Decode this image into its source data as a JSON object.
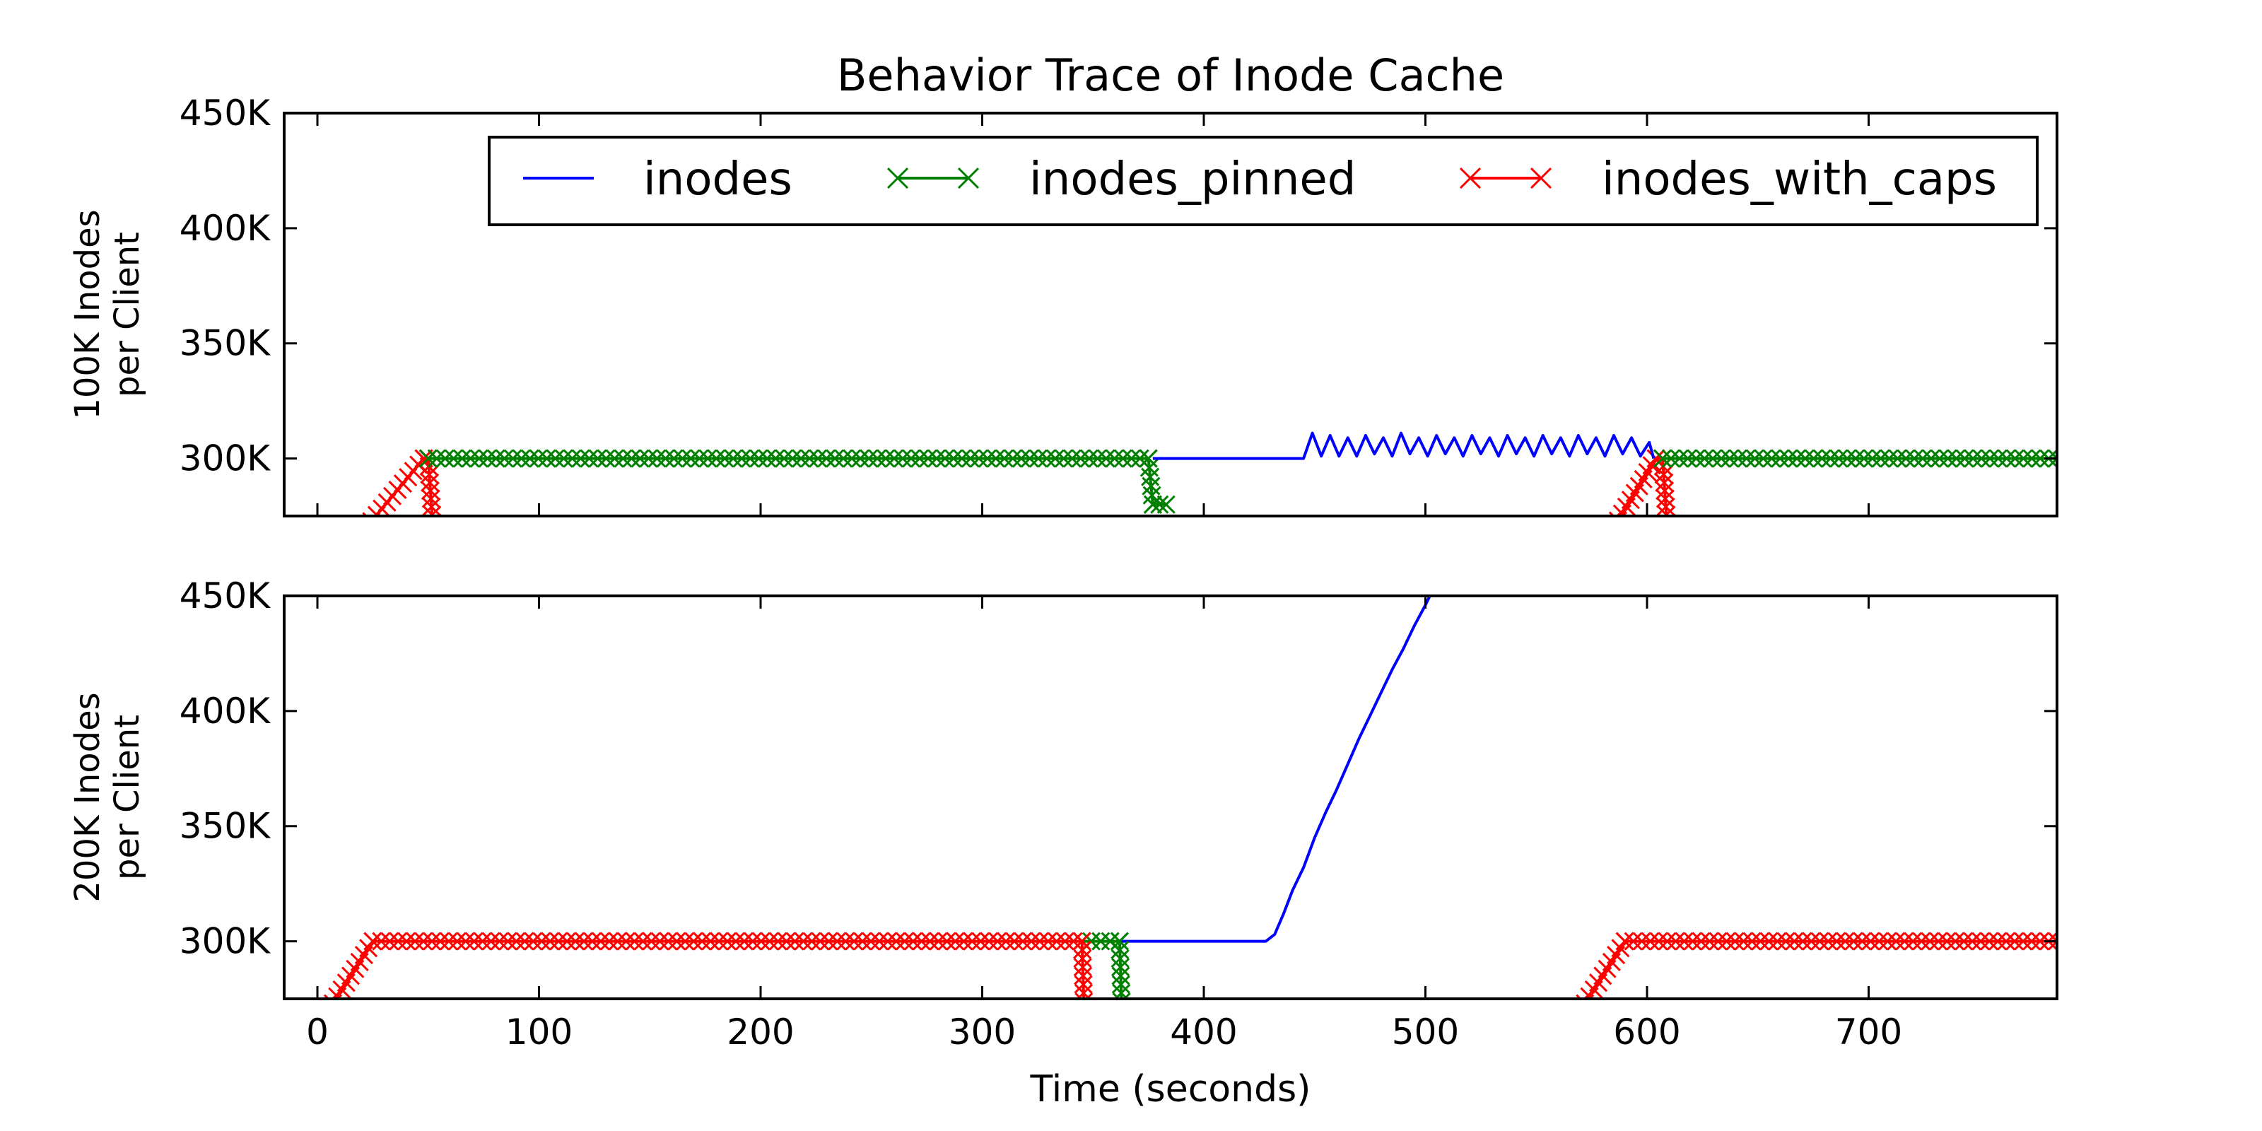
{
  "chart_data": {
    "type": "line",
    "title": "Behavior Trace of Inode Cache",
    "xlabel": "Time (seconds)",
    "xlim": [
      -15,
      785
    ],
    "xticks": [
      0,
      100,
      200,
      300,
      400,
      500,
      600,
      700
    ],
    "ylim": [
      275000,
      450000
    ],
    "yticks": [
      300000,
      350000,
      400000,
      450000
    ],
    "ytick_labels": [
      "300K",
      "350K",
      "400K",
      "450K"
    ],
    "legend": {
      "placement": "top-right",
      "entries": [
        {
          "name": "inodes",
          "color": "#0000ff",
          "marker": "none"
        },
        {
          "name": "inodes_pinned",
          "color": "#008000",
          "marker": "x"
        },
        {
          "name": "inodes_with_caps",
          "color": "#ff0000",
          "marker": "x"
        }
      ]
    },
    "panels": [
      {
        "ylabel_line1": "100K Inodes",
        "ylabel_line2": "per Client",
        "series": [
          {
            "name": "inodes_with_caps",
            "color": "#ff0000",
            "marker": "x",
            "segments": [
              [
                [
                  22,
                  270000
                ],
                [
                  48,
                  300000
                ],
                [
                  50,
                  300000
                ],
                [
                  52,
                  272000
                ]
              ],
              [
                [
                  585,
                  270000
                ],
                [
                  604,
                  300000
                ],
                [
                  607,
                  300000
                ],
                [
                  609,
                  272000
                ]
              ]
            ]
          },
          {
            "name": "inodes_pinned",
            "color": "#008000",
            "marker": "x",
            "segments": [
              [
                [
                  50,
                  300000
                ],
                [
                  375,
                  300000
                ],
                [
                  377,
                  280000
                ],
                [
                  383,
                  280000
                ]
              ],
              [
                [
                  607,
                  300000
                ],
                [
                  785,
                  300000
                ]
              ]
            ]
          },
          {
            "name": "inodes",
            "color": "#0000ff",
            "marker": "none",
            "segments": [
              [
                [
                  377,
                  300000
                ],
                [
                  445,
                  300000
                ],
                [
                  449,
                  311000
                ],
                [
                  453,
                  301000
                ],
                [
                  457,
                  310000
                ],
                [
                  461,
                  301000
                ],
                [
                  465,
                  309000
                ],
                [
                  469,
                  301000
                ],
                [
                  473,
                  310000
                ],
                [
                  477,
                  302000
                ],
                [
                  481,
                  309000
                ],
                [
                  485,
                  301000
                ],
                [
                  489,
                  311000
                ],
                [
                  493,
                  302000
                ],
                [
                  497,
                  309000
                ],
                [
                  501,
                  301000
                ],
                [
                  505,
                  310000
                ],
                [
                  509,
                  302000
                ],
                [
                  513,
                  309000
                ],
                [
                  517,
                  301000
                ],
                [
                  521,
                  310000
                ],
                [
                  525,
                  302000
                ],
                [
                  529,
                  309000
                ],
                [
                  533,
                  301000
                ],
                [
                  537,
                  310000
                ],
                [
                  541,
                  302000
                ],
                [
                  545,
                  309000
                ],
                [
                  549,
                  301000
                ],
                [
                  553,
                  310000
                ],
                [
                  557,
                  302000
                ],
                [
                  561,
                  309000
                ],
                [
                  565,
                  301000
                ],
                [
                  569,
                  310000
                ],
                [
                  573,
                  302000
                ],
                [
                  577,
                  309000
                ],
                [
                  581,
                  301000
                ],
                [
                  585,
                  310000
                ],
                [
                  589,
                  302000
                ],
                [
                  593,
                  309000
                ],
                [
                  597,
                  301000
                ],
                [
                  601,
                  307000
                ],
                [
                  603,
                  300000
                ]
              ]
            ]
          }
        ]
      },
      {
        "ylabel_line1": "200K Inodes",
        "ylabel_line2": "per Client",
        "series": [
          {
            "name": "inodes",
            "color": "#0000ff",
            "marker": "none",
            "segments": [
              [
                [
                  362,
                  300000
                ],
                [
                  428,
                  300000
                ],
                [
                  432,
                  303000
                ],
                [
                  436,
                  312000
                ],
                [
                  440,
                  322000
                ],
                [
                  445,
                  332000
                ],
                [
                  450,
                  345000
                ],
                [
                  455,
                  356000
                ],
                [
                  460,
                  366000
                ],
                [
                  465,
                  377000
                ],
                [
                  470,
                  388000
                ],
                [
                  475,
                  398000
                ],
                [
                  480,
                  408000
                ],
                [
                  485,
                  418000
                ],
                [
                  490,
                  427000
                ],
                [
                  495,
                  437000
                ],
                [
                  500,
                  446000
                ],
                [
                  503,
                  452000
                ]
              ]
            ]
          },
          {
            "name": "inodes_pinned",
            "color": "#008000",
            "marker": "x",
            "segments": [
              [
                [
                  345,
                  300000
                ],
                [
                  362,
                  300000
                ],
                [
                  363,
                  270000
                ]
              ]
            ]
          },
          {
            "name": "inodes_with_caps",
            "color": "#ff0000",
            "marker": "x",
            "segments": [
              [
                [
                  5,
                  270000
                ],
                [
                  25,
                  300000
                ],
                [
                  345,
                  300000
                ],
                [
                  346,
                  270000
                ]
              ],
              [
                [
                  570,
                  270000
                ],
                [
                  590,
                  300000
                ],
                [
                  785,
                  300000
                ]
              ]
            ]
          }
        ]
      }
    ]
  }
}
